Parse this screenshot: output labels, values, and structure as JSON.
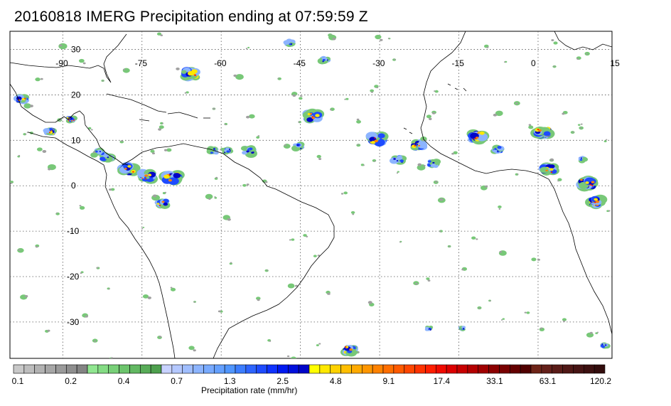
{
  "title": "20160818 IMERG Precipitation ending at 07:59:59 Z",
  "map": {
    "projection": "equirectangular",
    "lon_range": [
      -100,
      14
    ],
    "lat_range": [
      -38,
      34
    ],
    "longitude_labels": [
      "-90",
      "-75",
      "-60",
      "-45",
      "-30",
      "-15",
      "0",
      "15"
    ],
    "longitude_values": [
      -90,
      -75,
      -60,
      -45,
      -30,
      -15,
      0,
      15
    ],
    "latitude_labels": [
      "30",
      "20",
      "10",
      "0",
      "-10",
      "-20",
      "-30"
    ],
    "latitude_values": [
      30,
      20,
      10,
      0,
      -10,
      -20,
      -30
    ],
    "gridlines": true,
    "gridline_style": "dotted",
    "coastline_color": "#000000"
  },
  "colorbar": {
    "caption": "Precipitation rate (mm/hr)",
    "tick_labels": [
      "0.1",
      "0.2",
      "0.4",
      "0.7",
      "1.3",
      "2.5",
      "4.8",
      "9.1",
      "17.4",
      "33.1",
      "63.1",
      "120.2"
    ],
    "colors": [
      "#c8c8c8",
      "#bdbdbd",
      "#b2b2b2",
      "#a6a6a6",
      "#9a9a9a",
      "#8e8e8e",
      "#838383",
      "#90e690",
      "#84dc84",
      "#78d078",
      "#6cc46c",
      "#62b862",
      "#58ac58",
      "#4ea04e",
      "#c8d2ff",
      "#b4c8ff",
      "#a0beff",
      "#8cb4ff",
      "#78aaff",
      "#64a0ff",
      "#5096ff",
      "#3c7dff",
      "#2d64ff",
      "#1e4bff",
      "#0f32ff",
      "#0019f0",
      "#000fdc",
      "#0005c8",
      "#ffff00",
      "#ffe800",
      "#ffd200",
      "#ffbe00",
      "#ffaa00",
      "#ff9600",
      "#ff8200",
      "#ff6e00",
      "#ff5a00",
      "#ff4600",
      "#ff3200",
      "#ff1e00",
      "#f00a00",
      "#dc0000",
      "#c80000",
      "#b40000",
      "#a00000",
      "#8c0000",
      "#780000",
      "#640000",
      "#500000",
      "#6e2418",
      "#64201a",
      "#5a1c18",
      "#501816",
      "#461414",
      "#3c1010",
      "#320c0c"
    ]
  },
  "precip_colors": {
    "light": "#78c878",
    "gray": "#a0a0a0",
    "light_blue": "#8cb4ff",
    "blue": "#1e4bff",
    "dark_blue": "#0005c8",
    "yellow": "#ffe800",
    "orange": "#ff8200",
    "red": "#ff1e00",
    "dark_red": "#8c0000"
  }
}
